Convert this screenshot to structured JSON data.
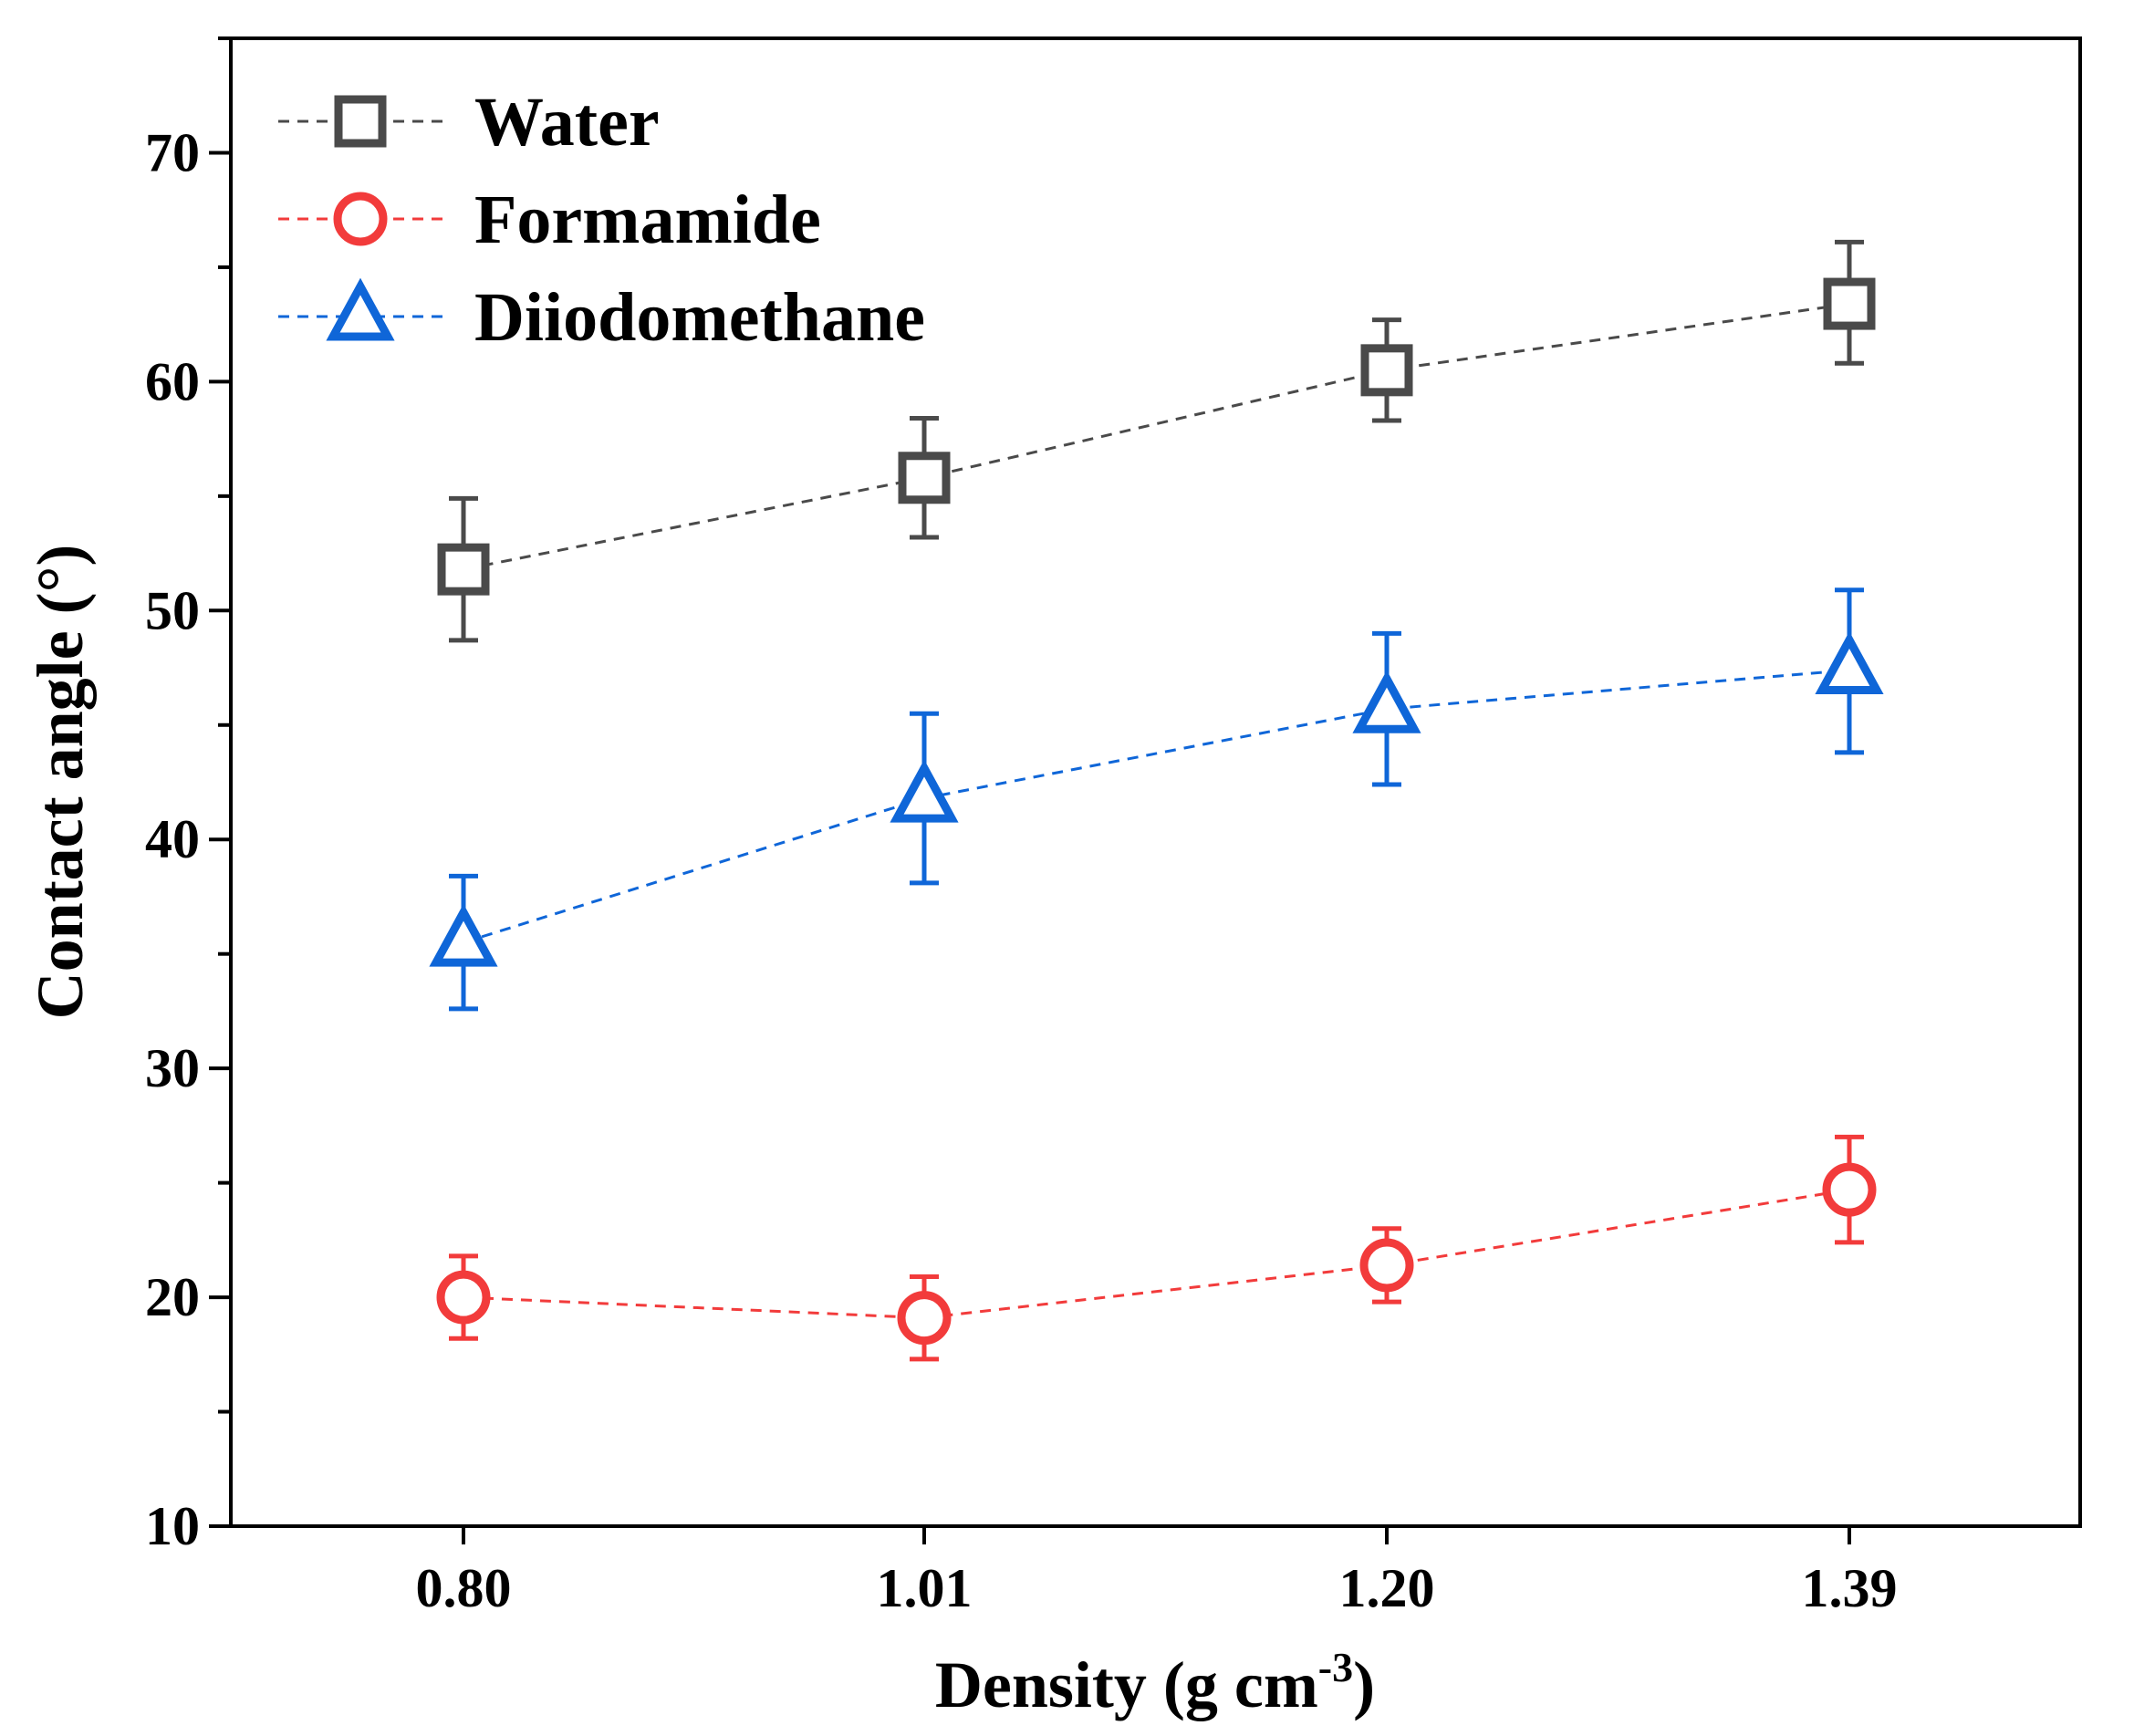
{
  "chart_data": {
    "type": "line",
    "title": "",
    "xlabel": "Density (g cm",
    "xlabel_sup": "-3",
    "xlabel_end": ")",
    "ylabel": "Contact angle (°)",
    "categories": [
      "0.80",
      "1.01",
      "1.20",
      "1.39"
    ],
    "ylim": [
      10,
      75
    ],
    "yticks": [
      10,
      20,
      30,
      40,
      50,
      60,
      70
    ],
    "y_minor_step": 5,
    "grid": false,
    "legend_position": "top-left",
    "series": [
      {
        "name": "Water",
        "marker": "square",
        "color": "#4a4a4a",
        "values": [
          51.8,
          55.8,
          60.5,
          63.4
        ],
        "err_plus": [
          3.1,
          2.6,
          2.2,
          2.7
        ],
        "err_minus": [
          3.1,
          2.6,
          2.2,
          2.6
        ]
      },
      {
        "name": "Formamide",
        "marker": "circle",
        "color": "#f23b3b",
        "values": [
          20.0,
          19.1,
          21.4,
          24.7
        ],
        "err_plus": [
          1.8,
          1.8,
          1.6,
          2.3
        ],
        "err_minus": [
          1.8,
          1.8,
          1.6,
          2.3
        ]
      },
      {
        "name": "Diiodomethane",
        "marker": "triangle",
        "color": "#0f66d8",
        "values": [
          35.5,
          41.8,
          45.7,
          47.4
        ],
        "err_plus": [
          2.9,
          3.7,
          3.3,
          3.5
        ],
        "err_minus": [
          2.9,
          3.7,
          3.3,
          3.6
        ]
      }
    ]
  }
}
